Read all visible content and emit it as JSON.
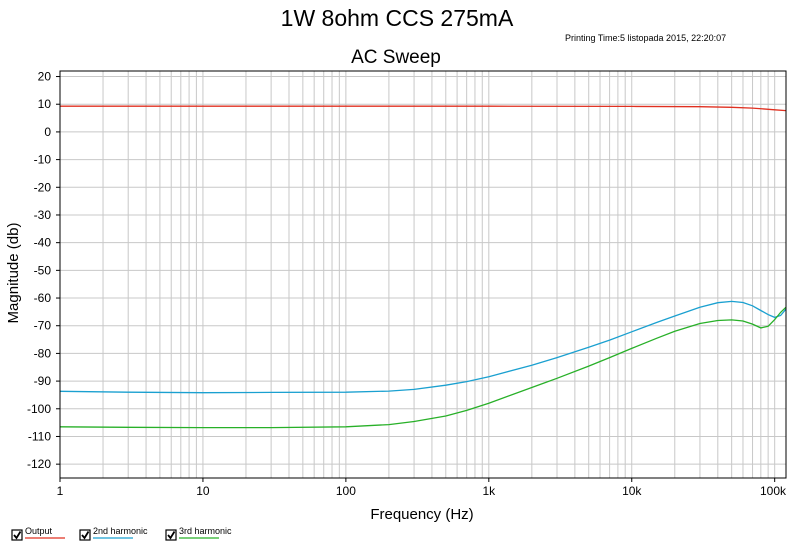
{
  "window": {
    "title": "1W 8ohm CCS 275mA",
    "printing_time": "Printing Time:5 listopada 2015, 22:20:07"
  },
  "chart_data": {
    "type": "line",
    "title": "AC Sweep",
    "xlabel": "Frequency (Hz)",
    "ylabel": "Magnitude (db)",
    "x_scale": "log",
    "xlim": [
      1,
      120000
    ],
    "ylim": [
      -125,
      22
    ],
    "grid": true,
    "legend_placement": "bottom-left",
    "x_ticks": [
      {
        "value": 1,
        "label": "1"
      },
      {
        "value": 10,
        "label": "10"
      },
      {
        "value": 100,
        "label": "100"
      },
      {
        "value": 1000,
        "label": "1k"
      },
      {
        "value": 10000,
        "label": "10k"
      },
      {
        "value": 100000,
        "label": "100k"
      }
    ],
    "y_ticks": [
      {
        "value": 20,
        "label": "20"
      },
      {
        "value": 10,
        "label": "10"
      },
      {
        "value": 0,
        "label": "0"
      },
      {
        "value": -10,
        "label": "-10"
      },
      {
        "value": -20,
        "label": "-20"
      },
      {
        "value": -30,
        "label": "-30"
      },
      {
        "value": -40,
        "label": "-40"
      },
      {
        "value": -50,
        "label": "-50"
      },
      {
        "value": -60,
        "label": "-60"
      },
      {
        "value": -70,
        "label": "-70"
      },
      {
        "value": -80,
        "label": "-80"
      },
      {
        "value": -90,
        "label": "-90"
      },
      {
        "value": -100,
        "label": "-100"
      },
      {
        "value": -110,
        "label": "-110"
      },
      {
        "value": -120,
        "label": "-120"
      }
    ],
    "series": [
      {
        "name": "Output",
        "color": "#e03020",
        "checked": true,
        "points": [
          [
            1,
            9.3
          ],
          [
            10,
            9.3
          ],
          [
            100,
            9.3
          ],
          [
            1000,
            9.3
          ],
          [
            10000,
            9.2
          ],
          [
            30000,
            9.1
          ],
          [
            50000,
            8.9
          ],
          [
            70000,
            8.6
          ],
          [
            100000,
            8.0
          ],
          [
            120000,
            7.7
          ]
        ]
      },
      {
        "name": "2nd harmonic",
        "color": "#1aa0d0",
        "checked": true,
        "points": [
          [
            1,
            -93.7
          ],
          [
            3,
            -94.0
          ],
          [
            10,
            -94.2
          ],
          [
            30,
            -94.1
          ],
          [
            100,
            -94.0
          ],
          [
            200,
            -93.6
          ],
          [
            300,
            -93.0
          ],
          [
            500,
            -91.5
          ],
          [
            700,
            -90.2
          ],
          [
            1000,
            -88.4
          ],
          [
            2000,
            -84.3
          ],
          [
            3000,
            -81.5
          ],
          [
            5000,
            -77.8
          ],
          [
            7000,
            -75.2
          ],
          [
            10000,
            -72.2
          ],
          [
            15000,
            -68.8
          ],
          [
            20000,
            -66.5
          ],
          [
            30000,
            -63.3
          ],
          [
            40000,
            -61.7
          ],
          [
            50000,
            -61.2
          ],
          [
            60000,
            -61.6
          ],
          [
            70000,
            -62.8
          ],
          [
            80000,
            -64.5
          ],
          [
            90000,
            -66.0
          ],
          [
            100000,
            -67.0
          ],
          [
            110000,
            -66.3
          ],
          [
            120000,
            -64.0
          ]
        ]
      },
      {
        "name": "3rd harmonic",
        "color": "#28b028",
        "checked": true,
        "points": [
          [
            1,
            -106.5
          ],
          [
            3,
            -106.7
          ],
          [
            10,
            -106.8
          ],
          [
            30,
            -106.8
          ],
          [
            100,
            -106.5
          ],
          [
            200,
            -105.7
          ],
          [
            300,
            -104.6
          ],
          [
            500,
            -102.6
          ],
          [
            700,
            -100.6
          ],
          [
            1000,
            -98.0
          ],
          [
            2000,
            -92.3
          ],
          [
            3000,
            -89.0
          ],
          [
            5000,
            -84.6
          ],
          [
            7000,
            -81.5
          ],
          [
            10000,
            -78.2
          ],
          [
            15000,
            -74.5
          ],
          [
            20000,
            -72.0
          ],
          [
            30000,
            -69.2
          ],
          [
            40000,
            -68.1
          ],
          [
            50000,
            -67.9
          ],
          [
            60000,
            -68.3
          ],
          [
            70000,
            -69.4
          ],
          [
            80000,
            -70.8
          ],
          [
            90000,
            -70.2
          ],
          [
            100000,
            -67.8
          ],
          [
            110000,
            -65.2
          ],
          [
            120000,
            -63.3
          ]
        ]
      }
    ]
  }
}
